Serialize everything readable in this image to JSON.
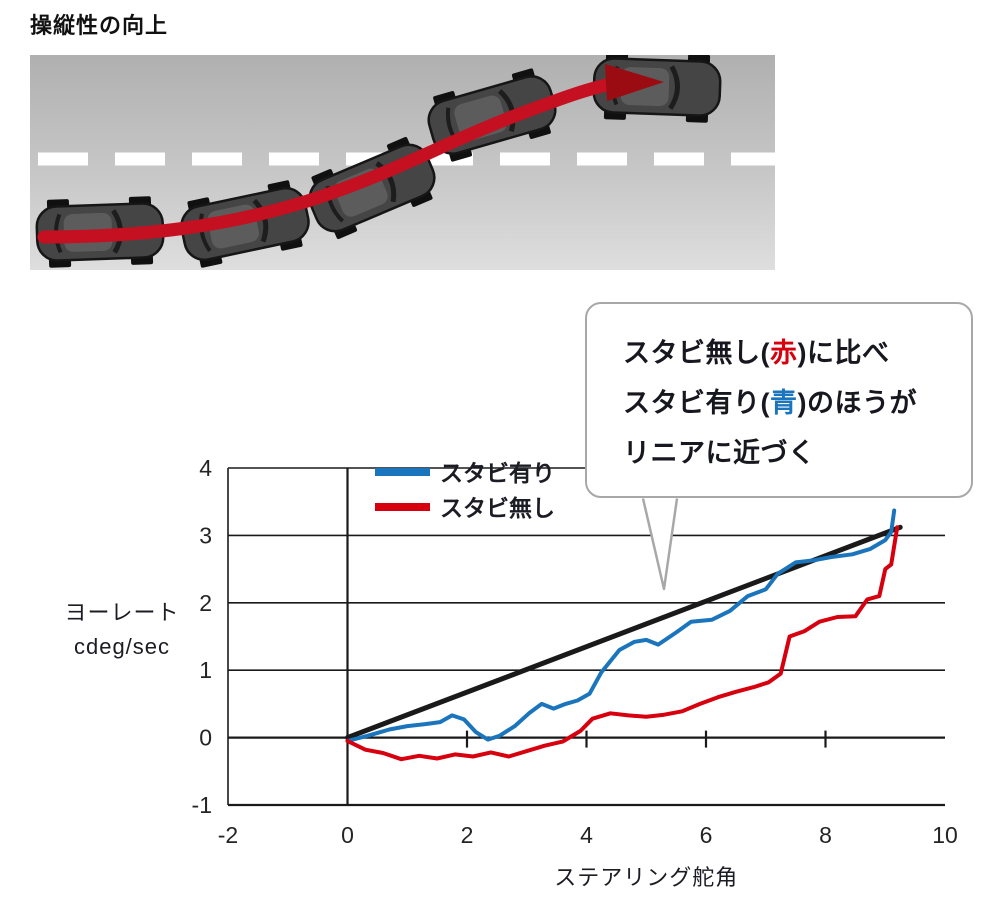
{
  "page": {
    "title": "操縦性の向上"
  },
  "callout": {
    "line1": {
      "pre": "スタビ無し(",
      "accent": "赤",
      "post": ")に比べ"
    },
    "line2": {
      "pre": "スタビ有り(",
      "accent": "青",
      "post": ")のほうが"
    },
    "line3": "リニアに近づく",
    "accent_red": "#d7000f",
    "accent_blue": "#1b75bc"
  },
  "chart_data": {
    "type": "line",
    "title": "",
    "xlabel": "ステアリング舵角",
    "ylabel_lines": [
      "ヨーレート",
      "cdeg/sec"
    ],
    "xlim": [
      -2,
      10
    ],
    "ylim": [
      -1,
      4
    ],
    "xticks": [
      -2,
      0,
      2,
      4,
      6,
      8,
      10
    ],
    "yticks": [
      -1,
      0,
      1,
      2,
      3,
      4
    ],
    "zero_axis_ticks": [
      2,
      4,
      6,
      8
    ],
    "grid": true,
    "grid_color": "#1a1a1a",
    "legend_position": "top-inside",
    "legend": [
      {
        "label": "スタビ有り",
        "color": "#1b75bc"
      },
      {
        "label": "スタビ無し",
        "color": "#d7000f"
      }
    ],
    "series": [
      {
        "name": "linear-reference",
        "color": "#1a1a1a",
        "width": 5,
        "points": [
          [
            0,
            0
          ],
          [
            9.25,
            3.12
          ]
        ]
      },
      {
        "name": "stabilizer-on",
        "color": "#1b75bc",
        "width": 4,
        "points": [
          [
            0,
            -0.05
          ],
          [
            0.35,
            0.03
          ],
          [
            0.7,
            0.12
          ],
          [
            1.0,
            0.17
          ],
          [
            1.3,
            0.2
          ],
          [
            1.55,
            0.23
          ],
          [
            1.75,
            0.33
          ],
          [
            1.95,
            0.27
          ],
          [
            2.15,
            0.08
          ],
          [
            2.35,
            -0.03
          ],
          [
            2.55,
            0.03
          ],
          [
            2.8,
            0.17
          ],
          [
            3.05,
            0.37
          ],
          [
            3.25,
            0.5
          ],
          [
            3.45,
            0.43
          ],
          [
            3.65,
            0.5
          ],
          [
            3.85,
            0.55
          ],
          [
            4.05,
            0.65
          ],
          [
            4.25,
            0.97
          ],
          [
            4.55,
            1.3
          ],
          [
            4.8,
            1.42
          ],
          [
            5.0,
            1.45
          ],
          [
            5.2,
            1.38
          ],
          [
            5.5,
            1.56
          ],
          [
            5.75,
            1.72
          ],
          [
            6.1,
            1.75
          ],
          [
            6.4,
            1.88
          ],
          [
            6.7,
            2.1
          ],
          [
            7.0,
            2.2
          ],
          [
            7.2,
            2.43
          ],
          [
            7.5,
            2.6
          ],
          [
            7.8,
            2.63
          ],
          [
            8.1,
            2.68
          ],
          [
            8.45,
            2.72
          ],
          [
            8.75,
            2.8
          ],
          [
            9.0,
            2.93
          ],
          [
            9.1,
            3.05
          ],
          [
            9.15,
            3.37
          ]
        ]
      },
      {
        "name": "stabilizer-off",
        "color": "#d7000f",
        "width": 4,
        "points": [
          [
            0,
            -0.05
          ],
          [
            0.3,
            -0.18
          ],
          [
            0.6,
            -0.23
          ],
          [
            0.9,
            -0.32
          ],
          [
            1.2,
            -0.27
          ],
          [
            1.5,
            -0.31
          ],
          [
            1.8,
            -0.25
          ],
          [
            2.1,
            -0.28
          ],
          [
            2.4,
            -0.22
          ],
          [
            2.7,
            -0.28
          ],
          [
            3.0,
            -0.2
          ],
          [
            3.3,
            -0.12
          ],
          [
            3.6,
            -0.06
          ],
          [
            3.9,
            0.1
          ],
          [
            4.1,
            0.28
          ],
          [
            4.4,
            0.36
          ],
          [
            4.7,
            0.33
          ],
          [
            5.0,
            0.31
          ],
          [
            5.3,
            0.34
          ],
          [
            5.6,
            0.39
          ],
          [
            5.9,
            0.5
          ],
          [
            6.2,
            0.6
          ],
          [
            6.5,
            0.68
          ],
          [
            6.8,
            0.75
          ],
          [
            7.05,
            0.82
          ],
          [
            7.25,
            0.95
          ],
          [
            7.4,
            1.5
          ],
          [
            7.65,
            1.58
          ],
          [
            7.9,
            1.72
          ],
          [
            8.2,
            1.79
          ],
          [
            8.5,
            1.8
          ],
          [
            8.7,
            2.05
          ],
          [
            8.9,
            2.1
          ],
          [
            9.0,
            2.5
          ],
          [
            9.1,
            2.57
          ],
          [
            9.2,
            3.12
          ]
        ]
      }
    ]
  }
}
